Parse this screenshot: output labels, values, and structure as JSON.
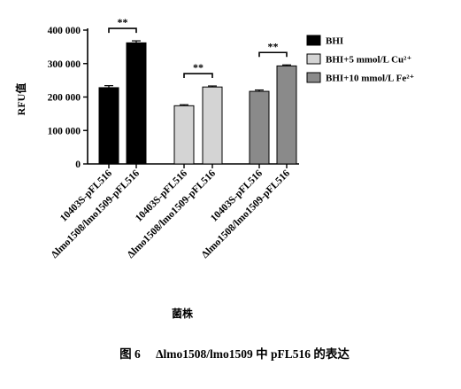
{
  "chart_data": {
    "type": "bar",
    "ylabel": "RFU值",
    "xlabel": "菌株",
    "ylim": [
      0,
      400000
    ],
    "yticks": [
      0,
      100000,
      200000,
      300000,
      400000
    ],
    "ytick_labels": [
      "0",
      "100 000",
      "200 000",
      "300 000",
      "400 000"
    ],
    "groups": [
      {
        "name": "BHI",
        "color": "#000000",
        "bars": [
          {
            "label": "10403S-pFL516",
            "value": 228000,
            "error": 6000
          },
          {
            "label": "Δlmo1508/lmo1509-pFL516",
            "value": 362000,
            "error": 6000
          }
        ],
        "significance": "**"
      },
      {
        "name": "BHI+5 mmol/L Cu²⁺",
        "color": "#d4d4d4",
        "bars": [
          {
            "label": "10403S-pFL516",
            "value": 174000,
            "error": 3000
          },
          {
            "label": "Δlmo1508/lmo1509-pFL516",
            "value": 230000,
            "error": 3000
          }
        ],
        "significance": "**"
      },
      {
        "name": "BHI+10 mmol/L Fe²⁺",
        "color": "#8a8a8a",
        "bars": [
          {
            "label": "10403S-pFL516",
            "value": 217000,
            "error": 4000
          },
          {
            "label": "Δlmo1508/lmo1509-pFL516",
            "value": 293000,
            "error": 3000
          }
        ],
        "significance": "**"
      }
    ],
    "legend": {
      "position": "top-right",
      "entries": [
        "BHI",
        "BHI+5 mmol/L Cu²⁺",
        "BHI+10 mmol/L Fe²⁺"
      ]
    }
  },
  "caption": {
    "number": "图 6",
    "text": "Δlmo1508/lmo1509 中 pFL516 的表达"
  }
}
